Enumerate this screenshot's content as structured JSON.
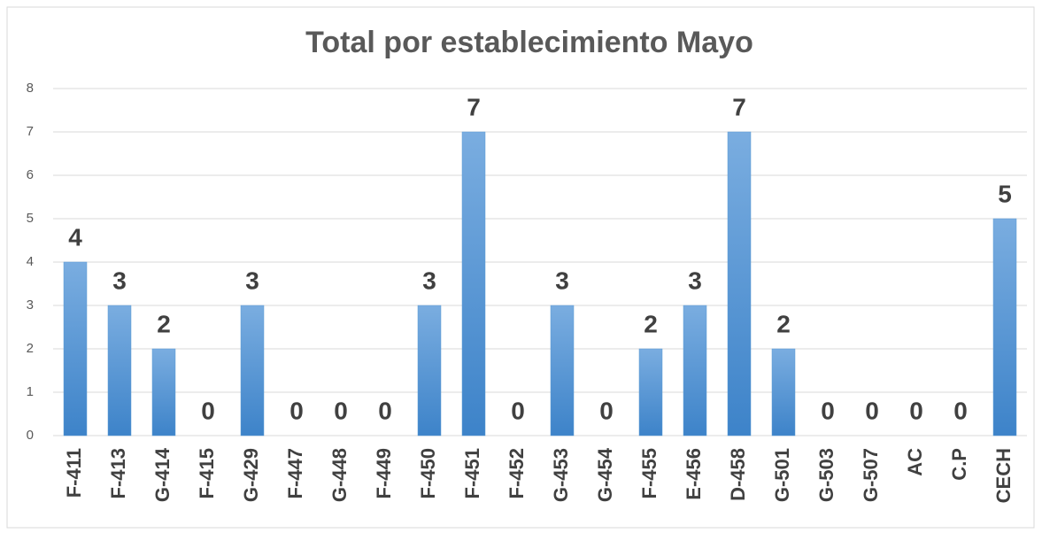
{
  "chart_data": {
    "type": "bar",
    "title": "Total por establecimiento  Mayo",
    "categories": [
      "F-411",
      "F-413",
      "G-414",
      "F-415",
      "G-429",
      "F-447",
      "G-448",
      "F-449",
      "F-450",
      "F-451",
      "F-452",
      "G-453",
      "G-454",
      "F-455",
      "E-456",
      "D-458",
      "G-501",
      "G-503",
      "G-507",
      "AC",
      "C.P",
      "CECH"
    ],
    "values": [
      4,
      3,
      2,
      0,
      3,
      0,
      0,
      0,
      3,
      7,
      0,
      3,
      0,
      2,
      3,
      7,
      2,
      0,
      0,
      0,
      0,
      5
    ],
    "color": "#5b9bd5",
    "ylim": [
      0,
      8
    ],
    "yticks": [
      0,
      1,
      2,
      3,
      4,
      5,
      6,
      7,
      8
    ],
    "grid": true
  }
}
